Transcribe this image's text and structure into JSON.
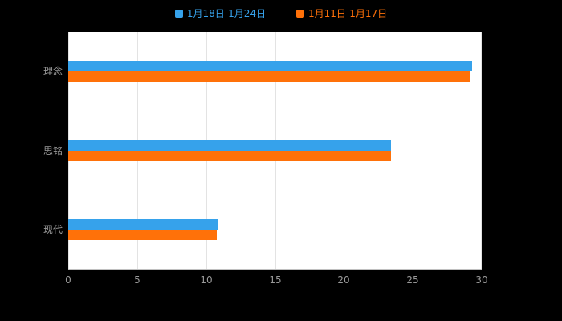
{
  "legend": {
    "items": [
      {
        "label": "1月18日-1月24日",
        "color": "#36a2eb"
      },
      {
        "label": "1月11日-1月17日",
        "color": "#ff7109"
      }
    ]
  },
  "chart_data": {
    "type": "bar",
    "orientation": "horizontal",
    "title": "",
    "xlabel": "",
    "ylabel": "",
    "categories": [
      "理念",
      "思铭",
      "现代"
    ],
    "series": [
      {
        "name": "1月18日-1月24日",
        "color": "#36a2eb",
        "values": [
          29.3,
          23.4,
          10.9
        ]
      },
      {
        "name": "1月11日-1月17日",
        "color": "#ff7109",
        "values": [
          29.2,
          23.4,
          10.8
        ]
      }
    ],
    "xlim": [
      0,
      30
    ],
    "xticks": [
      0,
      5,
      10,
      15,
      20,
      25,
      30
    ],
    "grid": true,
    "legend_position": "top",
    "plot_background": "#ffffff",
    "page_background": "#000000",
    "grid_color": "#e3e3e3",
    "axis_color": "#c0c0c0",
    "label_color": "#999999"
  }
}
